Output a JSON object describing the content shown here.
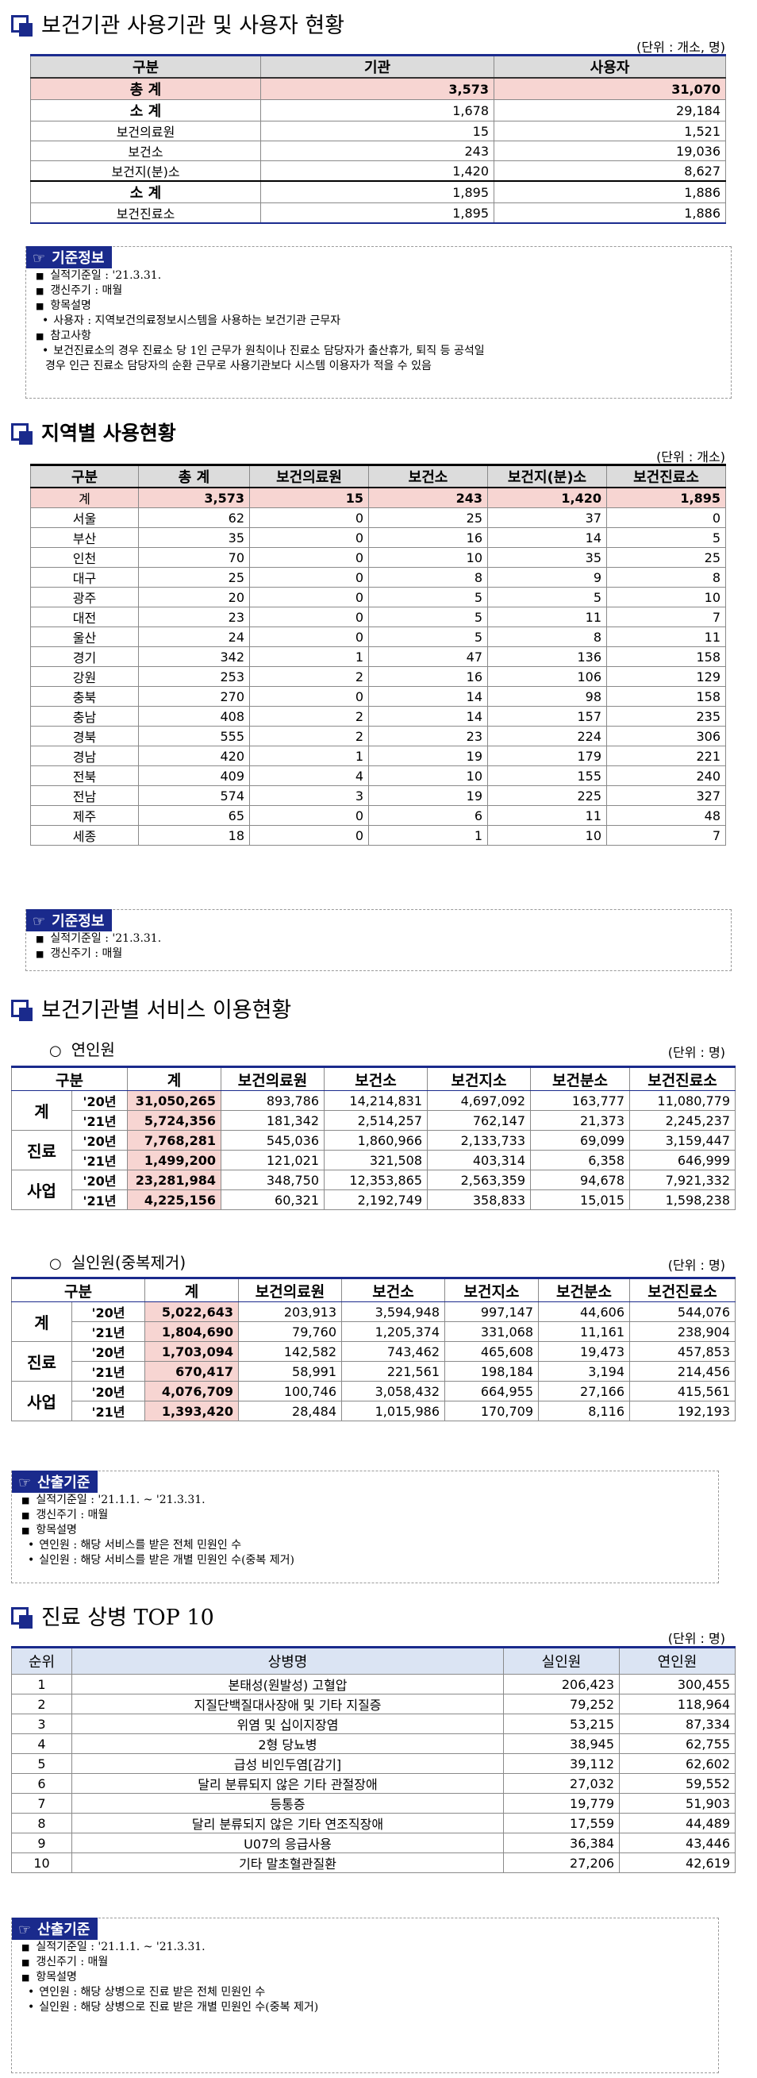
{
  "section1": {
    "title": "보건기관 사용기관 및 사용자 현황",
    "unit": "(단위 : 개소, 명)",
    "headers": [
      "구분",
      "기관",
      "사용자"
    ],
    "rows": [
      {
        "label": "총 계",
        "a": "3,573",
        "b": "31,070"
      },
      {
        "label": "소 계",
        "a": "1,678",
        "b": "29,184"
      },
      {
        "label": "보건의료원",
        "a": "15",
        "b": "1,521"
      },
      {
        "label": "보건소",
        "a": "243",
        "b": "19,036"
      },
      {
        "label": "보건지(분)소",
        "a": "1,420",
        "b": "8,627"
      },
      {
        "label": "소 계",
        "a": "1,895",
        "b": "1,886"
      },
      {
        "label": "보건진료소",
        "a": "1,895",
        "b": "1,886"
      }
    ],
    "info": {
      "tag": "기준정보",
      "lines": [
        "실적기준일 : '21.3.31.",
        "갱신주기 : 매월",
        "항목설명",
        "사용자 : 지역보건의료정보시스템을 사용하는 보건기관 근무자",
        "참고사항",
        "보건진료소의 경우 진료소 당 1인 근무가 원칙이나 진료소 담당자가 출산휴가, 퇴직 등 공석일",
        "경우 인근 진료소 담당자의 순환 근무로 사용기관보다 시스템 이용자가 적을 수 있음"
      ]
    }
  },
  "section2": {
    "title": "지역별 사용현황",
    "unit": "(단위 : 개소)",
    "headers": [
      "구분",
      "총 계",
      "보건의료원",
      "보건소",
      "보건지(분)소",
      "보건진료소"
    ],
    "rows": [
      [
        "계",
        "3,573",
        "15",
        "243",
        "1,420",
        "1,895"
      ],
      [
        "서울",
        "62",
        "0",
        "25",
        "37",
        "0"
      ],
      [
        "부산",
        "35",
        "0",
        "16",
        "14",
        "5"
      ],
      [
        "인천",
        "70",
        "0",
        "10",
        "35",
        "25"
      ],
      [
        "대구",
        "25",
        "0",
        "8",
        "9",
        "8"
      ],
      [
        "광주",
        "20",
        "0",
        "5",
        "5",
        "10"
      ],
      [
        "대전",
        "23",
        "0",
        "5",
        "11",
        "7"
      ],
      [
        "울산",
        "24",
        "0",
        "5",
        "8",
        "11"
      ],
      [
        "경기",
        "342",
        "1",
        "47",
        "136",
        "158"
      ],
      [
        "강원",
        "253",
        "2",
        "16",
        "106",
        "129"
      ],
      [
        "충북",
        "270",
        "0",
        "14",
        "98",
        "158"
      ],
      [
        "충남",
        "408",
        "2",
        "14",
        "157",
        "235"
      ],
      [
        "경북",
        "555",
        "2",
        "23",
        "224",
        "306"
      ],
      [
        "경남",
        "420",
        "1",
        "19",
        "179",
        "221"
      ],
      [
        "전북",
        "409",
        "4",
        "10",
        "155",
        "240"
      ],
      [
        "전남",
        "574",
        "3",
        "19",
        "225",
        "327"
      ],
      [
        "제주",
        "65",
        "0",
        "6",
        "11",
        "48"
      ],
      [
        "세종",
        "18",
        "0",
        "1",
        "10",
        "7"
      ]
    ],
    "info": {
      "tag": "기준정보",
      "lines": [
        "실적기준일 : '21.3.31.",
        "갱신주기 : 매월"
      ]
    }
  },
  "section3": {
    "title": "보건기관별 서비스 이용현황",
    "unit": "(단위 : 명)",
    "headers": [
      "구분",
      "계",
      "보건의료원",
      "보건소",
      "보건지소",
      "보건분소",
      "보건진료소"
    ],
    "yeonin": {
      "subtitle": "연인원",
      "rows": [
        [
          "계",
          "'20년",
          "31,050,265",
          "893,786",
          "14,214,831",
          "4,697,092",
          "163,777",
          "11,080,779"
        ],
        [
          "",
          "'21년",
          "5,724,356",
          "181,342",
          "2,514,257",
          "762,147",
          "21,373",
          "2,245,237"
        ],
        [
          "진료",
          "'20년",
          "7,768,281",
          "545,036",
          "1,860,966",
          "2,133,733",
          "69,099",
          "3,159,447"
        ],
        [
          "",
          "'21년",
          "1,499,200",
          "121,021",
          "321,508",
          "403,314",
          "6,358",
          "646,999"
        ],
        [
          "사업",
          "'20년",
          "23,281,984",
          "348,750",
          "12,353,865",
          "2,563,359",
          "94,678",
          "7,921,332"
        ],
        [
          "",
          "'21년",
          "4,225,156",
          "60,321",
          "2,192,749",
          "358,833",
          "15,015",
          "1,598,238"
        ]
      ]
    },
    "silin": {
      "subtitle": "실인원(중복제거)",
      "rows": [
        [
          "계",
          "'20년",
          "5,022,643",
          "203,913",
          "3,594,948",
          "997,147",
          "44,606",
          "544,076"
        ],
        [
          "",
          "'21년",
          "1,804,690",
          "79,760",
          "1,205,374",
          "331,068",
          "11,161",
          "238,904"
        ],
        [
          "진료",
          "'20년",
          "1,703,094",
          "142,582",
          "743,462",
          "465,608",
          "19,473",
          "457,853"
        ],
        [
          "",
          "'21년",
          "670,417",
          "58,991",
          "221,561",
          "198,184",
          "3,194",
          "214,456"
        ],
        [
          "사업",
          "'20년",
          "4,076,709",
          "100,746",
          "3,058,432",
          "664,955",
          "27,166",
          "415,561"
        ],
        [
          "",
          "'21년",
          "1,393,420",
          "28,484",
          "1,015,986",
          "170,709",
          "8,116",
          "192,193"
        ]
      ]
    },
    "info": {
      "tag": "산출기준",
      "lines": [
        "실적기준일 : '21.1.1. ~ '21.3.31.",
        "갱신주기 : 매월",
        "항목설명",
        "연인원 : 해당 서비스를 받은 전체 민원인 수",
        "실인원 : 해당 서비스를 받은 개별 민원인 수(중복 제거)"
      ]
    }
  },
  "section4": {
    "title": "진료 상병 TOP 10",
    "unit": "(단위 : 명)",
    "headers": [
      "순위",
      "상병명",
      "실인원",
      "연인원"
    ],
    "rows": [
      [
        "1",
        "본태성(원발성) 고혈압",
        "206,423",
        "300,455"
      ],
      [
        "2",
        "지질단백질대사장애 및 기타 지질증",
        "79,252",
        "118,964"
      ],
      [
        "3",
        "위염 및 십이지장염",
        "53,215",
        "87,334"
      ],
      [
        "4",
        "2형 당뇨병",
        "38,945",
        "62,755"
      ],
      [
        "5",
        "급성 비인두염[감기]",
        "39,112",
        "62,602"
      ],
      [
        "6",
        "달리 분류되지 않은 기타 관절장애",
        "27,032",
        "59,552"
      ],
      [
        "7",
        "등통증",
        "19,779",
        "51,903"
      ],
      [
        "8",
        "달리 분류되지 않은 기타 연조직장애",
        "17,559",
        "44,489"
      ],
      [
        "9",
        "U07의 응급사용",
        "36,384",
        "43,446"
      ],
      [
        "10",
        "기타 말초혈관질환",
        "27,206",
        "42,619"
      ]
    ],
    "info": {
      "tag": "산출기준",
      "lines": [
        "실적기준일 : '21.1.1. ~ '21.3.31.",
        "갱신주기 : 매월",
        "항목설명",
        "연인원 : 해당 상병으로 진료 받은 전체 민원인 수",
        "실인원 : 해당 상병으로 진료 받은 개별 민원인 수(중복 제거)"
      ]
    }
  },
  "colors": {
    "accent": "#1a2a8c",
    "highlight": "#f7d5d2",
    "header_gray": "#dcdcdc",
    "header_blue": "#dbe4f3"
  },
  "icons": {
    "section_marker": "square-marker-icon",
    "info_tag": "pointing-hand-icon"
  }
}
